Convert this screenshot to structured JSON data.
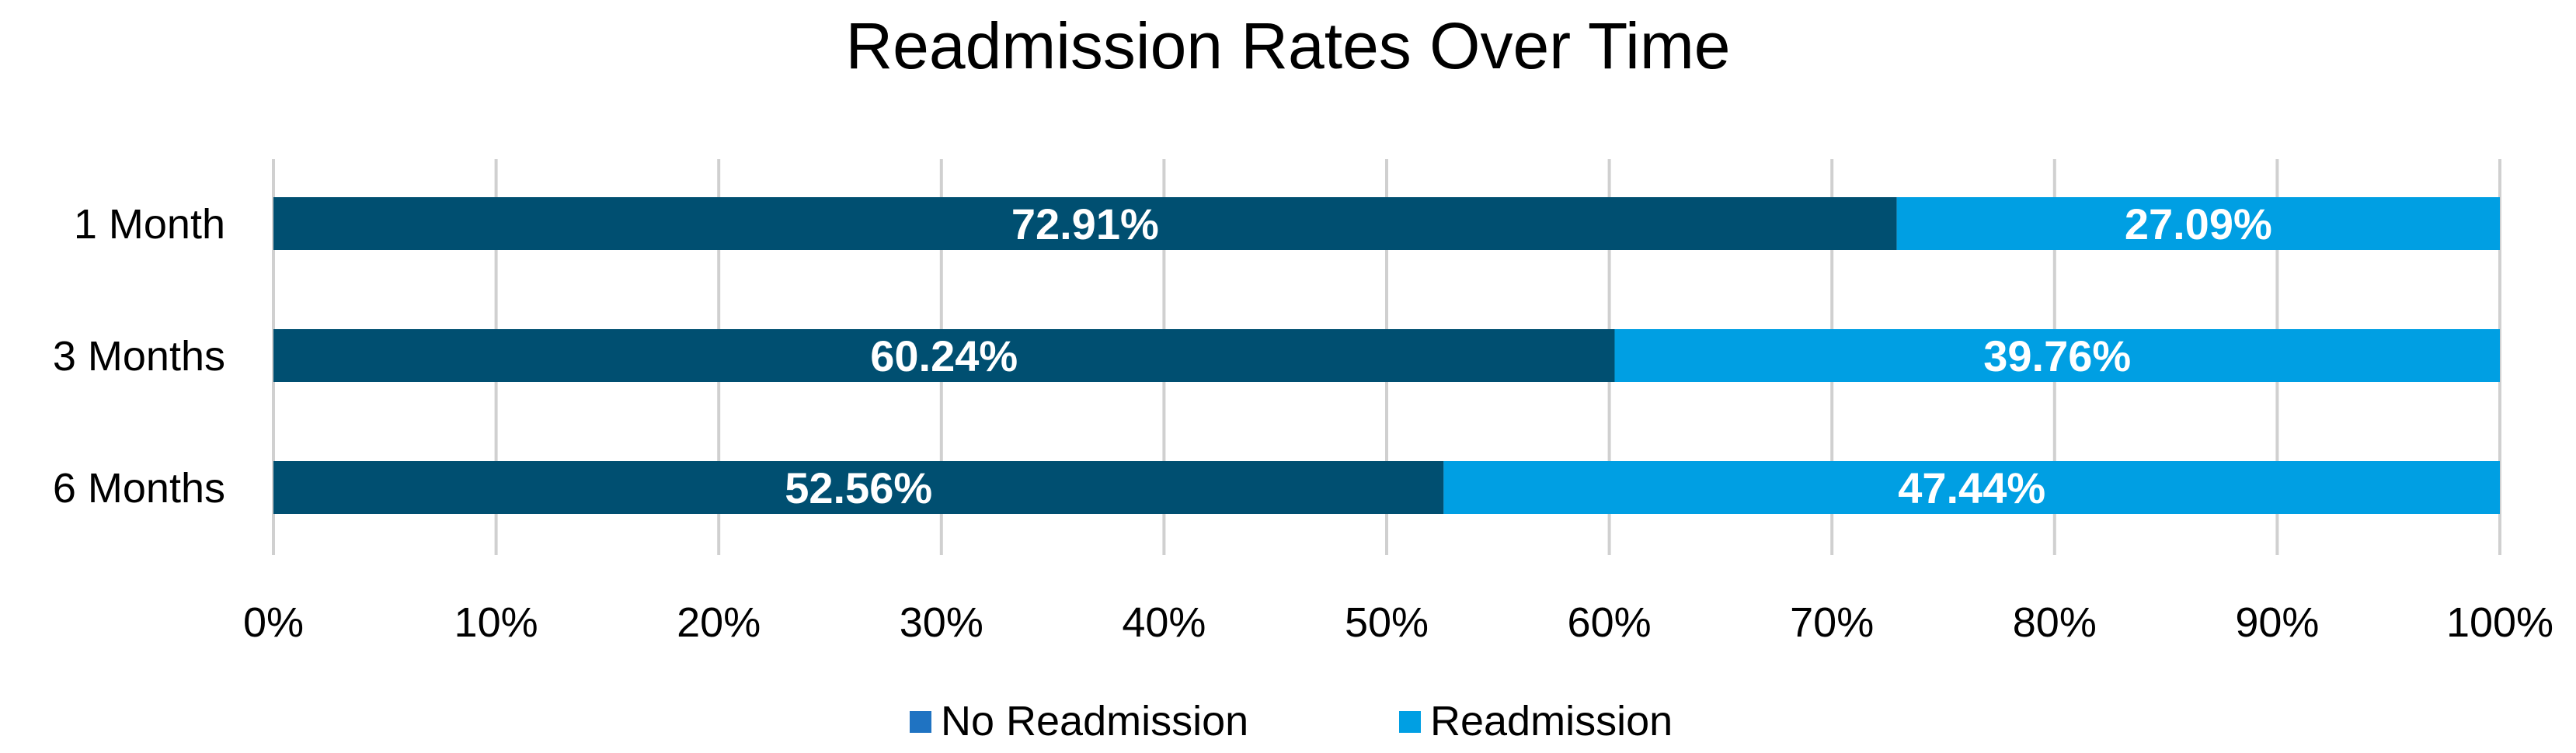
{
  "chart_data": {
    "type": "bar",
    "orientation": "horizontal",
    "stacked": true,
    "title": "Readmission Rates Over Time",
    "categories": [
      "1 Month",
      "3 Months",
      "6 Months"
    ],
    "series": [
      {
        "name": "No Readmission",
        "color": "#004f71",
        "legend_color": "#1f73c2",
        "values": [
          72.91,
          60.24,
          52.56
        ],
        "labels": [
          "72.91%",
          "60.24%",
          "52.56%"
        ]
      },
      {
        "name": "Readmission",
        "color": "#009fe3",
        "legend_color": "#009fe3",
        "values": [
          27.09,
          39.76,
          47.44
        ],
        "labels": [
          "27.09%",
          "39.76%",
          "47.44%"
        ]
      }
    ],
    "xlim": [
      0,
      100
    ],
    "x_ticks": [
      0,
      10,
      20,
      30,
      40,
      50,
      60,
      70,
      80,
      90,
      100
    ],
    "x_tick_labels": [
      "0%",
      "10%",
      "20%",
      "30%",
      "40%",
      "50%",
      "60%",
      "70%",
      "80%",
      "90%",
      "100%"
    ],
    "xlabel": "",
    "ylabel": "",
    "grid": "vertical",
    "legend_position": "bottom"
  }
}
